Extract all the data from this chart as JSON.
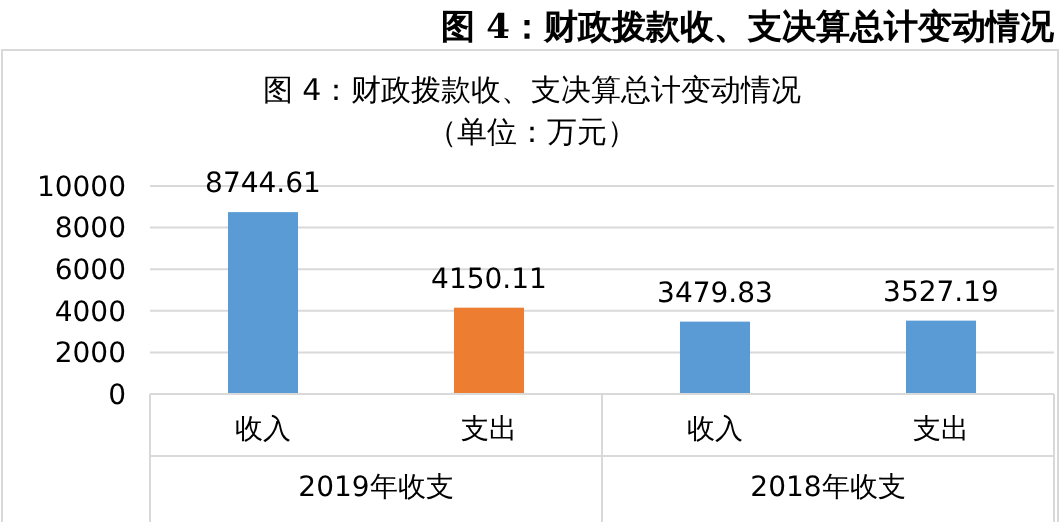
{
  "chart_data": {
    "type": "bar",
    "title": "图 4：财政拨款收、支决算总计变动情况",
    "subtitle": "（单位：万元）",
    "categories": [
      "收入",
      "支出",
      "收入",
      "支出"
    ],
    "values": [
      8744.61,
      4150.11,
      3479.83,
      3527.19
    ],
    "colors": [
      "#5b9bd5",
      "#ed7d31",
      "#5b9bd5",
      "#5b9bd5"
    ],
    "ylim": [
      0,
      10000
    ],
    "yticks": [
      0,
      2000,
      4000,
      6000,
      8000,
      10000
    ],
    "grid": "y",
    "data_labels": true,
    "annotations": [
      "图 4：财政拨款收、支决算总计变动情况",
      "2019年收支",
      "2018年收支"
    ]
  }
}
